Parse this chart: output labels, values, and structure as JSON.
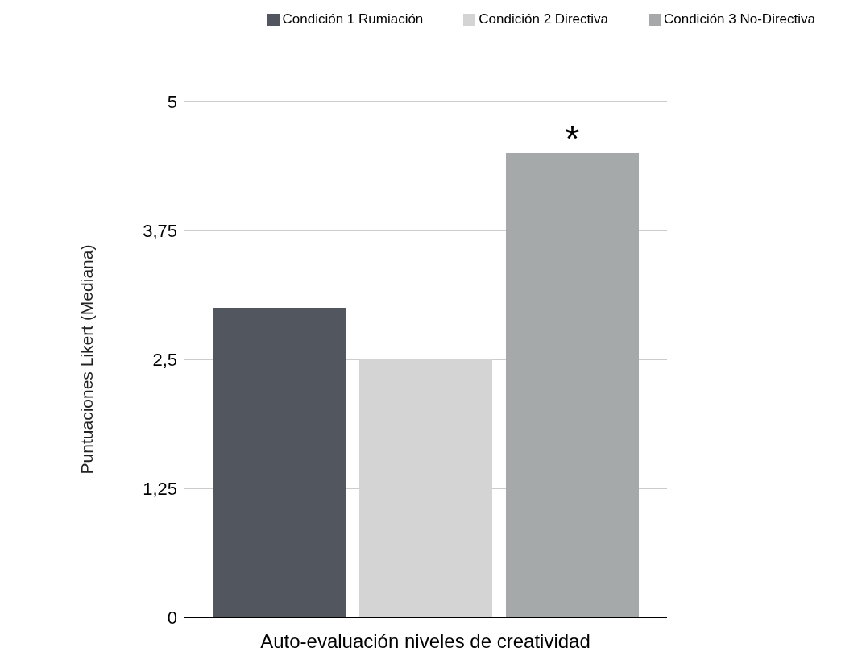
{
  "chart_data": {
    "type": "bar",
    "xlabel": "Auto-evaluación niveles de creatividad",
    "ylabel": "Puntuaciones Likert (Mediana)",
    "categories": [
      null
    ],
    "series": [
      {
        "name": "Condición 1 Rumiación",
        "color": "#52565e",
        "values": [
          3
        ]
      },
      {
        "name": "Condición 2 Directiva",
        "color": "#d4d4d4",
        "values": [
          2.5
        ]
      },
      {
        "name": "Condición 3 No-Directiva",
        "color": "#a5a9a9",
        "values": [
          4.5
        ]
      }
    ],
    "ylim": [
      0,
      5
    ],
    "yticks": [
      0,
      {
        "value": 1.25,
        "label": "1,25"
      },
      {
        "value": 2.5,
        "label": "2,5"
      },
      {
        "value": 3.75,
        "label": "3,75"
      },
      5
    ],
    "grid": "y",
    "legend": "top right",
    "annotations": [
      {
        "text": "*",
        "y": 4.5
      }
    ]
  }
}
